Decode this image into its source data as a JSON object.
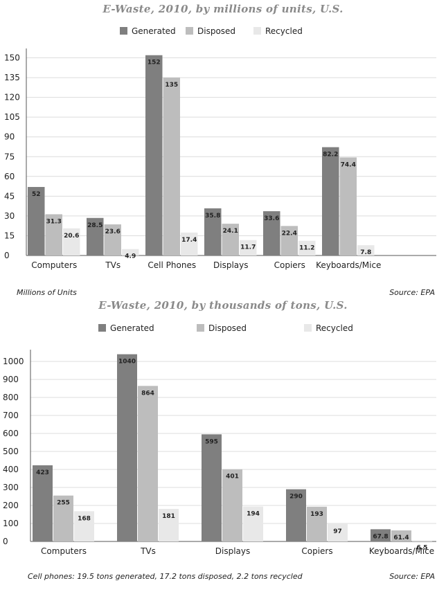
{
  "colors": {
    "generated": "#7f7f7f",
    "disposed": "#bdbdbd",
    "recycled": "#e8e8e8",
    "grid": "#dcdcdc",
    "axis": "#555555"
  },
  "chart_data": [
    {
      "type": "bar",
      "title": "E-Waste, 2010, by millions of units, U.S.",
      "categories": [
        "Computers",
        "TVs",
        "Cell Phones",
        "Displays",
        "Copiers",
        "Keyboards/Mice"
      ],
      "series": [
        {
          "name": "Generated",
          "values": [
            52,
            28.5,
            152,
            35.8,
            33.6,
            82.2
          ],
          "labels": [
            "52",
            "28.5",
            "152",
            "35.8",
            "33.6",
            "82.2"
          ]
        },
        {
          "name": "Disposed",
          "values": [
            31.3,
            23.6,
            135,
            24.1,
            22.4,
            74.4
          ],
          "labels": [
            "31.3",
            "23.6",
            "135",
            "24.1",
            "22.4",
            "74.4"
          ]
        },
        {
          "name": "Recycled",
          "values": [
            20.6,
            4.9,
            17.4,
            11.7,
            11.2,
            7.8
          ],
          "labels": [
            "20.6",
            "4.9",
            "17.4",
            "11.7",
            "11.2",
            "7.8"
          ]
        }
      ],
      "yticks": [
        0,
        15,
        30,
        45,
        60,
        75,
        90,
        105,
        120,
        135,
        150
      ],
      "ylim": [
        0,
        155
      ],
      "grid": true,
      "legend": "top-center",
      "footer_left": "Millions of Units",
      "footer_right": "Source: EPA"
    },
    {
      "type": "bar",
      "title": "E-Waste, 2010, by thousands of tons, U.S.",
      "categories": [
        "Computers",
        "TVs",
        "Displays",
        "Copiers",
        "Keyboards/Mice"
      ],
      "series": [
        {
          "name": "Generated",
          "values": [
            423,
            1040,
            595,
            290,
            67.8
          ],
          "labels": [
            "423",
            "1040",
            "595",
            "290",
            "67.8"
          ]
        },
        {
          "name": "Disposed",
          "values": [
            255,
            864,
            401,
            193,
            61.4
          ],
          "labels": [
            "255",
            "864",
            "401",
            "193",
            "61.4"
          ]
        },
        {
          "name": "Recycled",
          "values": [
            168,
            181,
            194,
            97,
            6.5
          ],
          "labels": [
            "168",
            "181",
            "194",
            "97",
            "6.5"
          ]
        }
      ],
      "yticks": [
        0,
        100,
        200,
        300,
        400,
        500,
        600,
        700,
        800,
        900,
        1000
      ],
      "ylim": [
        0,
        1050
      ],
      "grid": true,
      "legend": "top-center",
      "footer_left": "Cell phones: 19.5 tons generated, 17.2 tons disposed, 2.2 tons recycled",
      "footer_right": "Source: EPA"
    }
  ]
}
